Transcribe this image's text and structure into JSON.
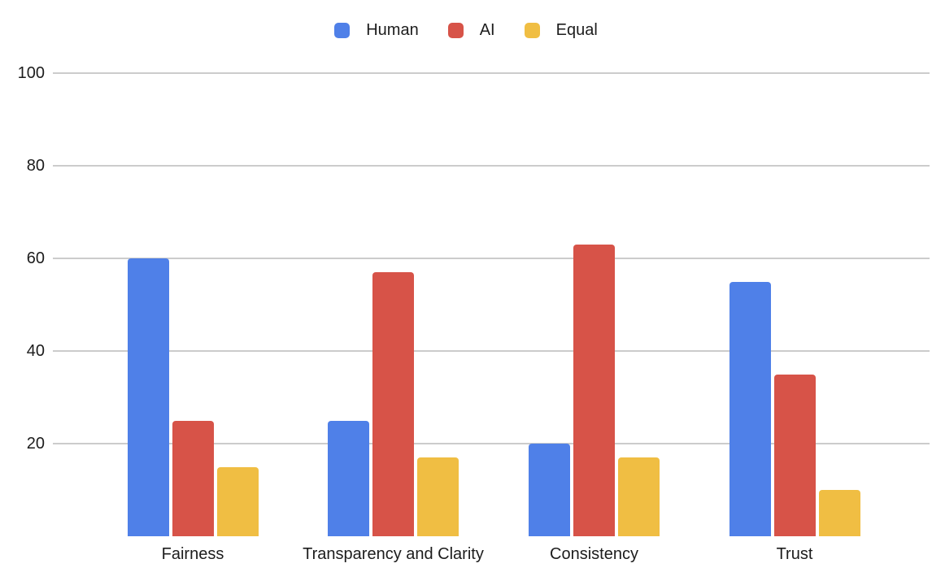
{
  "chart_data": {
    "type": "bar",
    "title": "",
    "categories": [
      "Fairness",
      "Transparency and Clarity",
      "Consistency",
      "Trust"
    ],
    "series": [
      {
        "name": "Human",
        "color": "#4F80E8",
        "values": [
          60,
          25,
          20,
          55
        ]
      },
      {
        "name": "AI",
        "color": "#D75348",
        "values": [
          25,
          57,
          63,
          35
        ]
      },
      {
        "name": "Equal",
        "color": "#F0BE43",
        "values": [
          15,
          17,
          17,
          10
        ]
      }
    ],
    "xlabel": "",
    "ylabel": "",
    "ylim": [
      0,
      100
    ],
    "yticks": [
      20,
      40,
      60,
      80,
      100
    ],
    "grid": true,
    "gridline_color": "#cccccc",
    "legend_position": "top",
    "text_color": "#1c1c1c",
    "background_color": "#ffffff"
  }
}
